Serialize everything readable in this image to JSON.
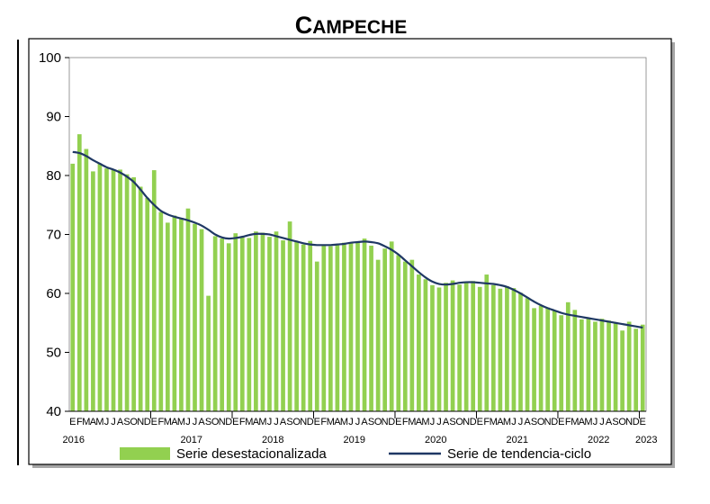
{
  "chart_data": {
    "type": "bar+line",
    "title": "Campeche",
    "ylim": [
      40,
      100
    ],
    "yticks": [
      40,
      50,
      60,
      70,
      80,
      90,
      100
    ],
    "grid": false,
    "legend_position": "bottom",
    "month_letters": [
      "E",
      "F",
      "M",
      "A",
      "M",
      "J",
      "J",
      "A",
      "S",
      "O",
      "N",
      "D"
    ],
    "years": [
      "2016",
      "2017",
      "2018",
      "2019",
      "2020",
      "2021",
      "2022",
      "2023"
    ],
    "colors": {
      "bars": "#92d050",
      "trend": "#1f3864",
      "axis": "#000000",
      "frame_shadow": "#a6a6a6"
    },
    "series": [
      {
        "name": "Serie desestacionalizada",
        "kind": "bar",
        "values": [
          82.0,
          87.0,
          84.5,
          80.7,
          82.0,
          81.2,
          81.0,
          81.0,
          80.2,
          79.7,
          78.1,
          76.2,
          80.9,
          73.8,
          72.0,
          73.2,
          72.8,
          74.4,
          71.8,
          70.9,
          59.6,
          69.7,
          69.3,
          68.5,
          70.2,
          69.5,
          69.4,
          70.5,
          70.3,
          69.6,
          70.5,
          69.0,
          72.2,
          68.8,
          68.3,
          68.9,
          65.4,
          68.1,
          68.0,
          68.3,
          68.6,
          68.6,
          68.7,
          69.3,
          68.1,
          65.7,
          67.6,
          68.8,
          66.5,
          65.4,
          65.7,
          63.2,
          62.4,
          61.4,
          61.0,
          61.8,
          62.2,
          61.5,
          62.0,
          62.1,
          61.1,
          63.2,
          61.4,
          60.8,
          61.2,
          60.9,
          60.1,
          59.2,
          57.5,
          57.9,
          57.6,
          57.1,
          56.3,
          58.5,
          57.2,
          55.6,
          55.8,
          55.2,
          55.7,
          55.4,
          54.9,
          53.7,
          55.2,
          54.0,
          54.7
        ]
      },
      {
        "name": "Serie de tendencia-ciclo",
        "kind": "line",
        "values": [
          84.0,
          83.8,
          83.3,
          82.6,
          82.0,
          81.4,
          81.0,
          80.5,
          79.8,
          78.9,
          77.6,
          76.2,
          75.0,
          74.0,
          73.4,
          73.0,
          72.7,
          72.4,
          72.0,
          71.5,
          70.8,
          70.0,
          69.5,
          69.3,
          69.4,
          69.6,
          69.9,
          70.1,
          70.1,
          70.0,
          69.7,
          69.4,
          69.1,
          68.8,
          68.5,
          68.3,
          68.2,
          68.2,
          68.2,
          68.3,
          68.4,
          68.6,
          68.7,
          68.8,
          68.7,
          68.5,
          68.0,
          67.4,
          66.6,
          65.6,
          64.6,
          63.6,
          62.7,
          62.0,
          61.6,
          61.5,
          61.6,
          61.8,
          61.9,
          61.9,
          61.8,
          61.7,
          61.6,
          61.4,
          61.1,
          60.6,
          60.0,
          59.3,
          58.6,
          58.0,
          57.5,
          57.1,
          56.7,
          56.4,
          56.2,
          56.0,
          55.8,
          55.6,
          55.4,
          55.2,
          55.0,
          54.8,
          54.6,
          54.4,
          54.2
        ]
      }
    ]
  }
}
